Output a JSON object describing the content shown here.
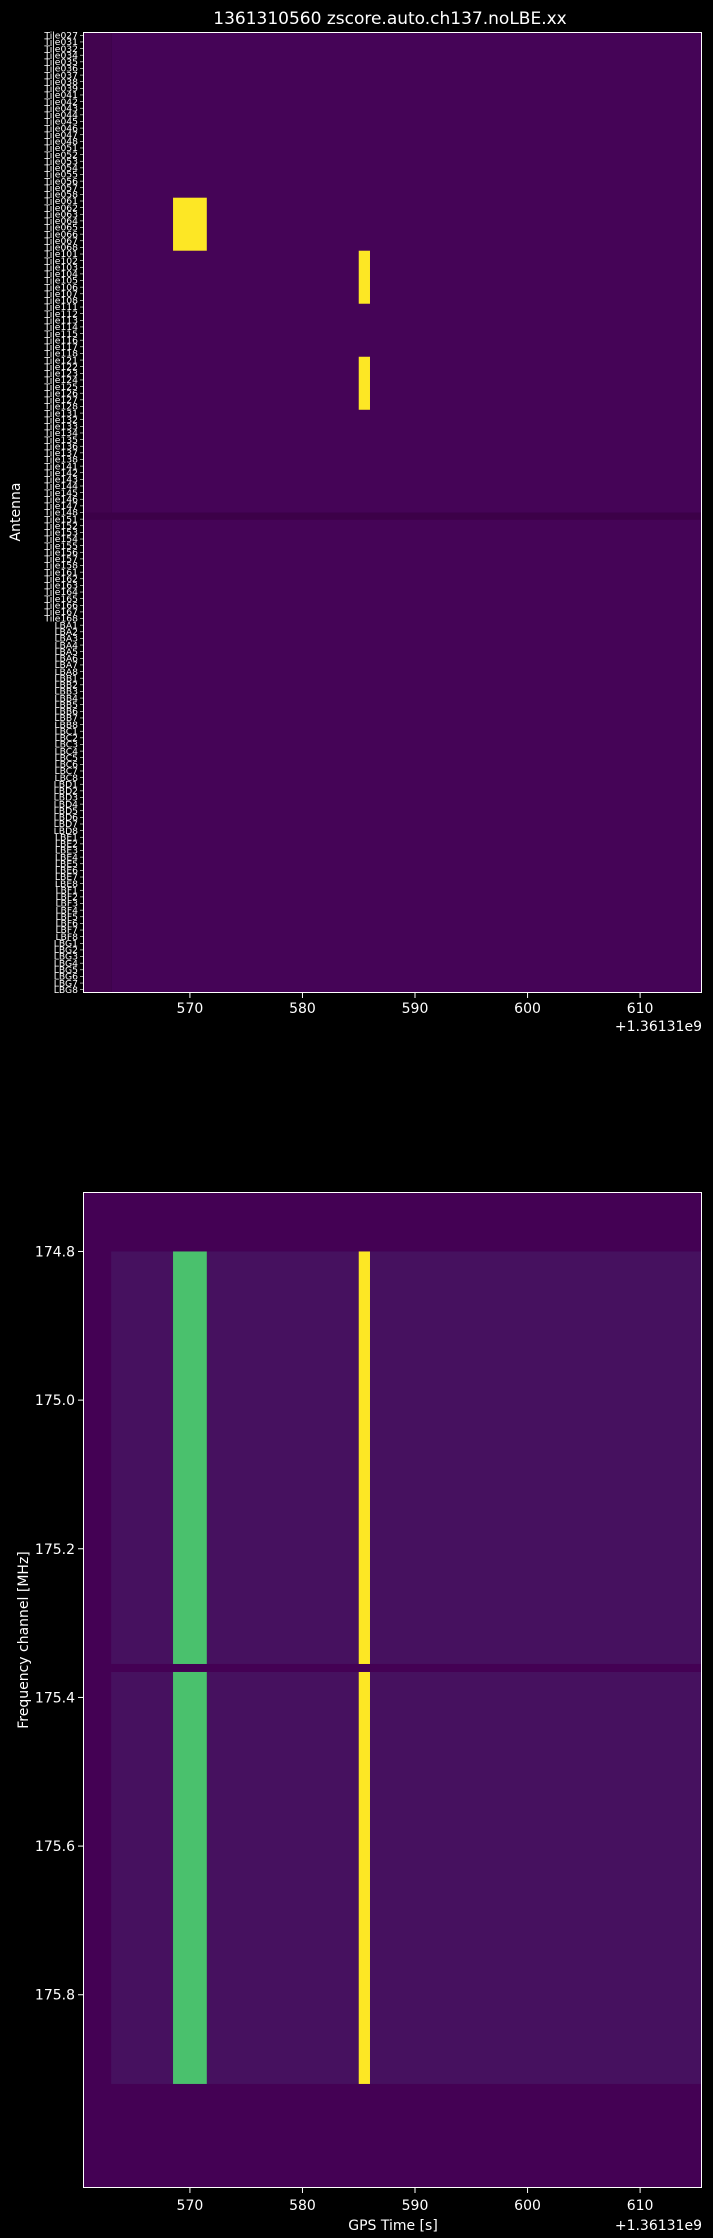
{
  "chart_data": [
    {
      "type": "heatmap",
      "title": "1361310560 zscore.auto.ch137.noLBE.xx",
      "xlabel": "",
      "ylabel": "Antenna",
      "x_offset_label": "+1.36131e9",
      "xlim": [
        560.5,
        615.5
      ],
      "x_ticks": [
        570,
        580,
        590,
        600,
        610
      ],
      "data_x_start": 563,
      "y_labels": [
        "Tile027",
        "Tile031",
        "Tile032",
        "Tile034",
        "Tile035",
        "Tile036",
        "Tile037",
        "Tile038",
        "Tile039",
        "Tile041",
        "Tile042",
        "Tile043",
        "Tile044",
        "Tile045",
        "Tile046",
        "Tile047",
        "Tile048",
        "Tile051",
        "Tile052",
        "Tile053",
        "Tile054",
        "Tile055",
        "Tile056",
        "Tile057",
        "Tile058",
        "Tile061",
        "Tile062",
        "Tile063",
        "Tile064",
        "Tile065",
        "Tile066",
        "Tile067",
        "Tile068",
        "Tile101",
        "Tile102",
        "Tile103",
        "Tile104",
        "Tile105",
        "Tile106",
        "Tile107",
        "Tile108",
        "Tile111",
        "Tile112",
        "Tile113",
        "Tile114",
        "Tile115",
        "Tile116",
        "Tile117",
        "Tile118",
        "Tile121",
        "Tile122",
        "Tile123",
        "Tile124",
        "Tile125",
        "Tile126",
        "Tile127",
        "Tile128",
        "Tile131",
        "Tile132",
        "Tile133",
        "Tile134",
        "Tile135",
        "Tile136",
        "Tile137",
        "Tile138",
        "Tile141",
        "Tile142",
        "Tile143",
        "Tile144",
        "Tile145",
        "Tile146",
        "Tile147",
        "Tile148",
        "Tile151",
        "Tile152",
        "Tile153",
        "Tile154",
        "Tile155",
        "Tile156",
        "Tile157",
        "Tile158",
        "Tile161",
        "Tile162",
        "Tile163",
        "Tile164",
        "Tile165",
        "Tile166",
        "Tile167",
        "Tile168",
        "LBA1",
        "LBA2",
        "LBA3",
        "LBA4",
        "LBA5",
        "LBA6",
        "LBA7",
        "LBA8",
        "LBB1",
        "LBB2",
        "LBB3",
        "LBB4",
        "LBB5",
        "LBB6",
        "LBB7",
        "LBB8",
        "LBC1",
        "LBC2",
        "LBC3",
        "LBC4",
        "LBC5",
        "LBC6",
        "LBC7",
        "LBC8",
        "LBD1",
        "LBD2",
        "LBD3",
        "LBD4",
        "LBD5",
        "LBD6",
        "LBD7",
        "LBD8",
        "LBE1",
        "LBE2",
        "LBE3",
        "LBE4",
        "LBE5",
        "LBE6",
        "LBE7",
        "LBE8",
        "LBF1",
        "LBF2",
        "LBF3",
        "LBF4",
        "LBF5",
        "LBF6",
        "LBF7",
        "LBF8",
        "LBG1",
        "LBG2",
        "LBG3",
        "LBG4",
        "LBG5",
        "LBG6",
        "LBG7",
        "LBG8"
      ],
      "background_color": "#450457",
      "flagged_row_color": "#3c0148",
      "flagged_rows": [
        "Tile151"
      ],
      "colormap": "viridis",
      "highlights": [
        {
          "x_start": 568.5,
          "x_end": 571.5,
          "y_from": "Tile061",
          "y_to": "Tile068",
          "value": 1.0
        },
        {
          "x_start": 585.0,
          "x_end": 586.0,
          "y_from": "Tile101",
          "y_to": "Tile108",
          "value": 1.0
        },
        {
          "x_start": 585.0,
          "x_end": 586.0,
          "y_from": "Tile121",
          "y_to": "Tile128",
          "value": 1.0
        }
      ]
    },
    {
      "type": "heatmap",
      "title": "",
      "xlabel": "GPS Time [s]",
      "ylabel": "Frequency channel [MHz]",
      "x_offset_label": "+1.36131e9",
      "xlim": [
        560.5,
        615.5
      ],
      "x_ticks": [
        570,
        580,
        590,
        600,
        610
      ],
      "ylim": [
        174.72,
        176.06
      ],
      "y_ticks": [
        "174.8",
        "175.0",
        "175.2",
        "175.4",
        "175.6",
        "175.8"
      ],
      "data_x_start": 563,
      "data_y_range": [
        174.8,
        175.92
      ],
      "pad_color": "#440154",
      "background_color": "#46115f",
      "flagged_channel": 175.355,
      "colormap": "viridis",
      "highlights": [
        {
          "x_start": 568.5,
          "x_end": 571.5,
          "color": "#4ac16d",
          "value": 0.65
        },
        {
          "x_start": 585.0,
          "x_end": 586.0,
          "color": "#fde725",
          "value": 1.0
        }
      ]
    }
  ]
}
